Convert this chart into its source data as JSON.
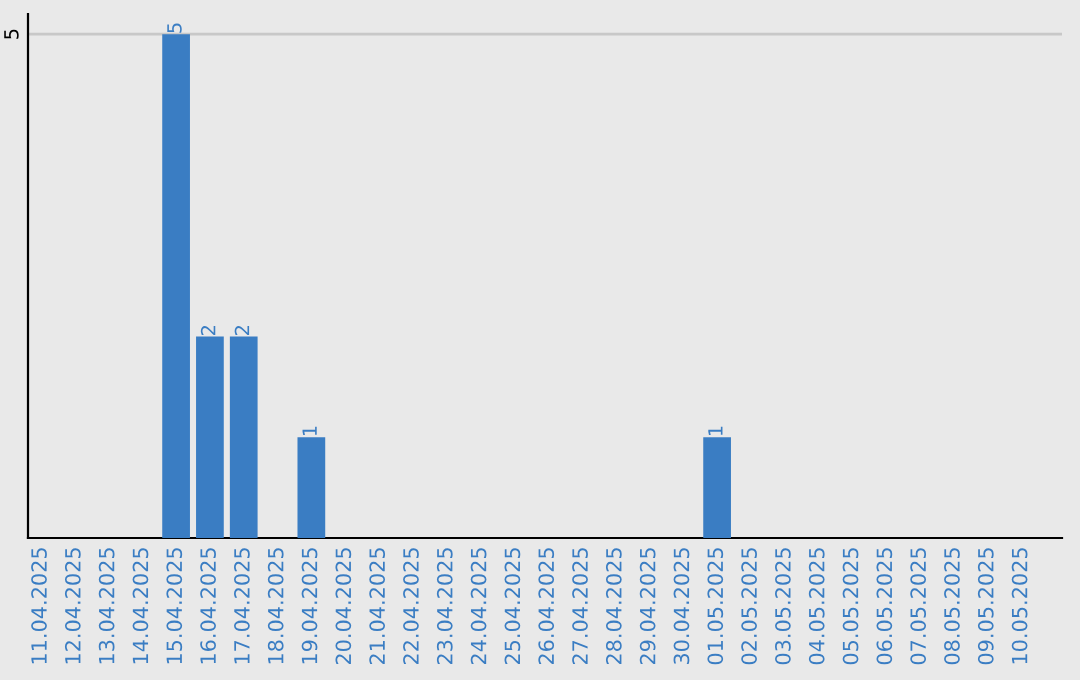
{
  "chart_data": {
    "type": "bar",
    "categories": [
      "11.04.2025",
      "12.04.2025",
      "13.04.2025",
      "14.04.2025",
      "15.04.2025",
      "16.04.2025",
      "17.04.2025",
      "18.04.2025",
      "19.04.2025",
      "20.04.2025",
      "21.04.2025",
      "22.04.2025",
      "23.04.2025",
      "24.04.2025",
      "25.04.2025",
      "26.04.2025",
      "27.04.2025",
      "28.04.2025",
      "29.04.2025",
      "30.04.2025",
      "01.05.2025",
      "02.05.2025",
      "03.05.2025",
      "04.05.2025",
      "05.05.2025",
      "06.05.2025",
      "07.05.2025",
      "08.05.2025",
      "09.05.2025",
      "10.05.2025"
    ],
    "values": [
      0,
      0,
      0,
      0,
      5,
      2,
      2,
      0,
      1,
      0,
      0,
      0,
      0,
      0,
      0,
      0,
      0,
      0,
      0,
      0,
      1,
      0,
      0,
      0,
      0,
      0,
      0,
      0,
      0,
      0
    ],
    "value_labels": [
      null,
      null,
      null,
      null,
      "5",
      "2",
      "2",
      null,
      "1",
      null,
      null,
      null,
      null,
      null,
      null,
      null,
      null,
      null,
      null,
      null,
      "1",
      null,
      null,
      null,
      null,
      null,
      null,
      null,
      null,
      null
    ],
    "color": "#3a7dc3",
    "ylim": [
      0,
      5.2
    ],
    "yticks": [
      5
    ],
    "grid": "y"
  }
}
